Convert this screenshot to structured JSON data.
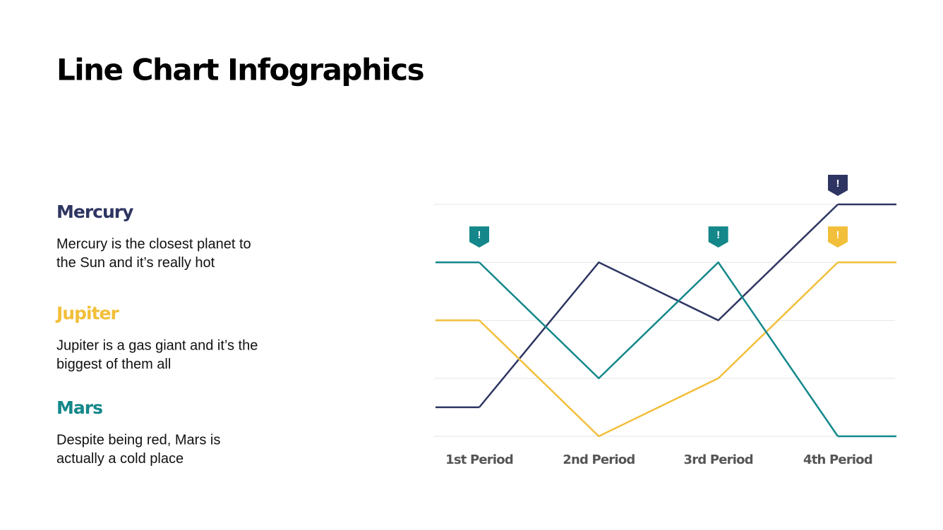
{
  "chart_data": {
    "type": "line",
    "title": "Line Chart Infographics",
    "categories": [
      "1st Period",
      "2nd Period",
      "3rd Period",
      "4th Period"
    ],
    "ylim": [
      0,
      4
    ],
    "yticks": [
      0,
      1,
      2,
      3,
      4
    ],
    "grid": true,
    "series": [
      {
        "name": "Mercury",
        "color": "#2e3562",
        "values": [
          0.5,
          3,
          2,
          4
        ],
        "description": [
          "Mercury is the closest planet to",
          "the Sun and it’s really hot"
        ]
      },
      {
        "name": "Jupiter",
        "color": "#f2bf3a",
        "values": [
          2,
          0,
          1,
          3
        ],
        "description": [
          "Jupiter is a gas giant and it’s the",
          "biggest of them all"
        ]
      },
      {
        "name": "Mars",
        "color": "#13878a",
        "values": [
          3,
          1,
          3,
          0
        ],
        "description": [
          "Despite being red, Mars is",
          "actually a cold place"
        ]
      }
    ],
    "annotations": [
      {
        "text": "!",
        "series": "Mercury",
        "category": "4th Period"
      },
      {
        "text": "!",
        "series": "Mars",
        "category": "1st Period"
      },
      {
        "text": "!",
        "series": "Mars",
        "category": "3rd Period"
      },
      {
        "text": "!",
        "series": "Jupiter",
        "category": "4th Period"
      }
    ]
  }
}
